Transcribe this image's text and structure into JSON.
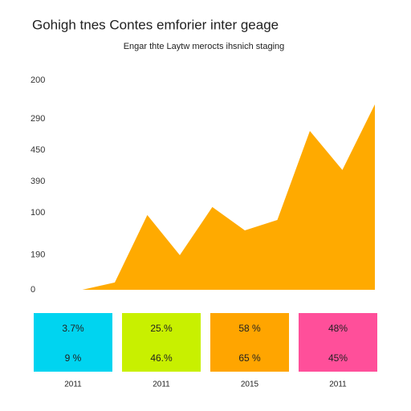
{
  "chart_data": {
    "type": "area",
    "title": "Gohigh tnes Contes emforier inter geage",
    "subtitle": "Engar thte Laytw merocts ihsnich staging",
    "categories": [
      null,
      null,
      null,
      null,
      null,
      null,
      null,
      null,
      null,
      null,
      null
    ],
    "values": [
      0,
      0,
      21,
      214,
      99,
      237,
      170,
      200,
      455,
      343,
      531
    ],
    "color": "#ffaa00",
    "ylim": [
      0,
      600
    ],
    "yticks": [
      0,
      {
        "value": 100,
        "label": "190"
      },
      {
        "value": 220,
        "label": "100"
      },
      {
        "value": 310,
        "label": "390"
      },
      {
        "value": 400,
        "label": "450"
      },
      {
        "value": 490,
        "label": "290"
      },
      {
        "value": 600,
        "label": "200"
      }
    ],
    "grid": false
  },
  "cards": [
    {
      "color": "#00d4f0",
      "top": "3.7%",
      "bottom": "9 %",
      "year": "2011"
    },
    {
      "color": "#c8f000",
      "top": "25.%",
      "bottom": "46.%",
      "year": "2011"
    },
    {
      "color": "#ffa500",
      "top": "58 %",
      "bottom": "65 %",
      "year": "2015"
    },
    {
      "color": "#ff4f9a",
      "top": "48%",
      "bottom": "45%",
      "year": "2011"
    }
  ]
}
